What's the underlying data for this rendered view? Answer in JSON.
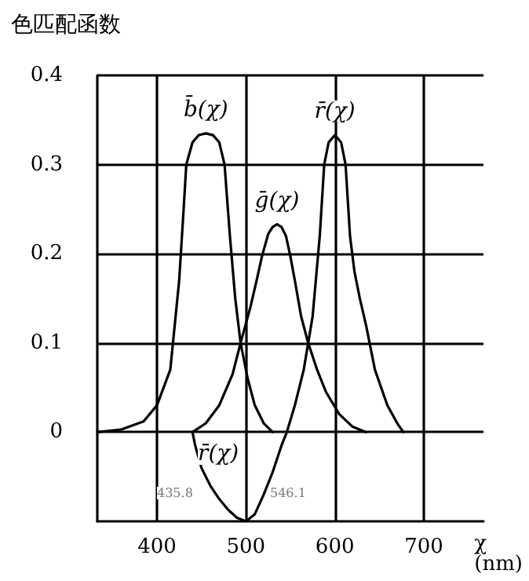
{
  "chart_data": {
    "type": "line",
    "title": "色匹配函数",
    "xlabel": "χ (nm)",
    "xlim": [
      333,
      767
    ],
    "xticks": [
      400,
      500,
      600,
      700
    ],
    "ylim": [
      -0.1,
      0.4
    ],
    "yticks": [
      0,
      0.1,
      0.2,
      0.3,
      0.4
    ],
    "grid": true,
    "marker": "none",
    "line_style": "solid",
    "series": [
      {
        "name": "b̄(χ)",
        "color": "#000000",
        "x": [
          333,
          360,
          385,
          400,
          415,
          425,
          430,
          433,
          440,
          447,
          455,
          463,
          470,
          476,
          482,
          488,
          494,
          502,
          510,
          520,
          530
        ],
        "values": [
          0,
          0.003,
          0.012,
          0.03,
          0.07,
          0.17,
          0.25,
          0.3,
          0.325,
          0.333,
          0.335,
          0.333,
          0.325,
          0.3,
          0.22,
          0.15,
          0.1,
          0.06,
          0.03,
          0.01,
          0
        ]
      },
      {
        "name": "ḡ(χ)",
        "color": "#000000",
        "x": [
          440,
          455,
          470,
          485,
          494,
          505,
          512,
          518,
          525,
          530,
          535,
          540,
          545,
          550,
          555,
          562,
          570,
          580,
          590,
          605,
          620,
          635
        ],
        "values": [
          0,
          0.01,
          0.03,
          0.065,
          0.1,
          0.14,
          0.17,
          0.197,
          0.222,
          0.23,
          0.233,
          0.23,
          0.22,
          0.197,
          0.17,
          0.13,
          0.1,
          0.07,
          0.045,
          0.02,
          0.006,
          0
        ]
      },
      {
        "name": "r̄(χ)",
        "color": "#000000",
        "x": [
          440,
          443,
          450,
          460,
          470,
          480,
          490,
          500,
          510,
          520,
          530,
          540,
          546,
          555,
          565,
          575,
          583,
          588,
          593,
          600,
          607,
          612,
          617,
          622,
          628,
          635,
          645,
          659,
          670,
          677
        ],
        "values": [
          0,
          -0.015,
          -0.04,
          -0.06,
          -0.075,
          -0.087,
          -0.096,
          -0.1,
          -0.092,
          -0.07,
          -0.045,
          -0.015,
          0,
          0.03,
          0.07,
          0.13,
          0.22,
          0.3,
          0.325,
          0.333,
          0.325,
          0.3,
          0.22,
          0.18,
          0.15,
          0.12,
          0.07,
          0.03,
          0.01,
          0
        ]
      }
    ],
    "annotations": [
      "r̄(χ)",
      "435.8",
      "546.1"
    ]
  }
}
